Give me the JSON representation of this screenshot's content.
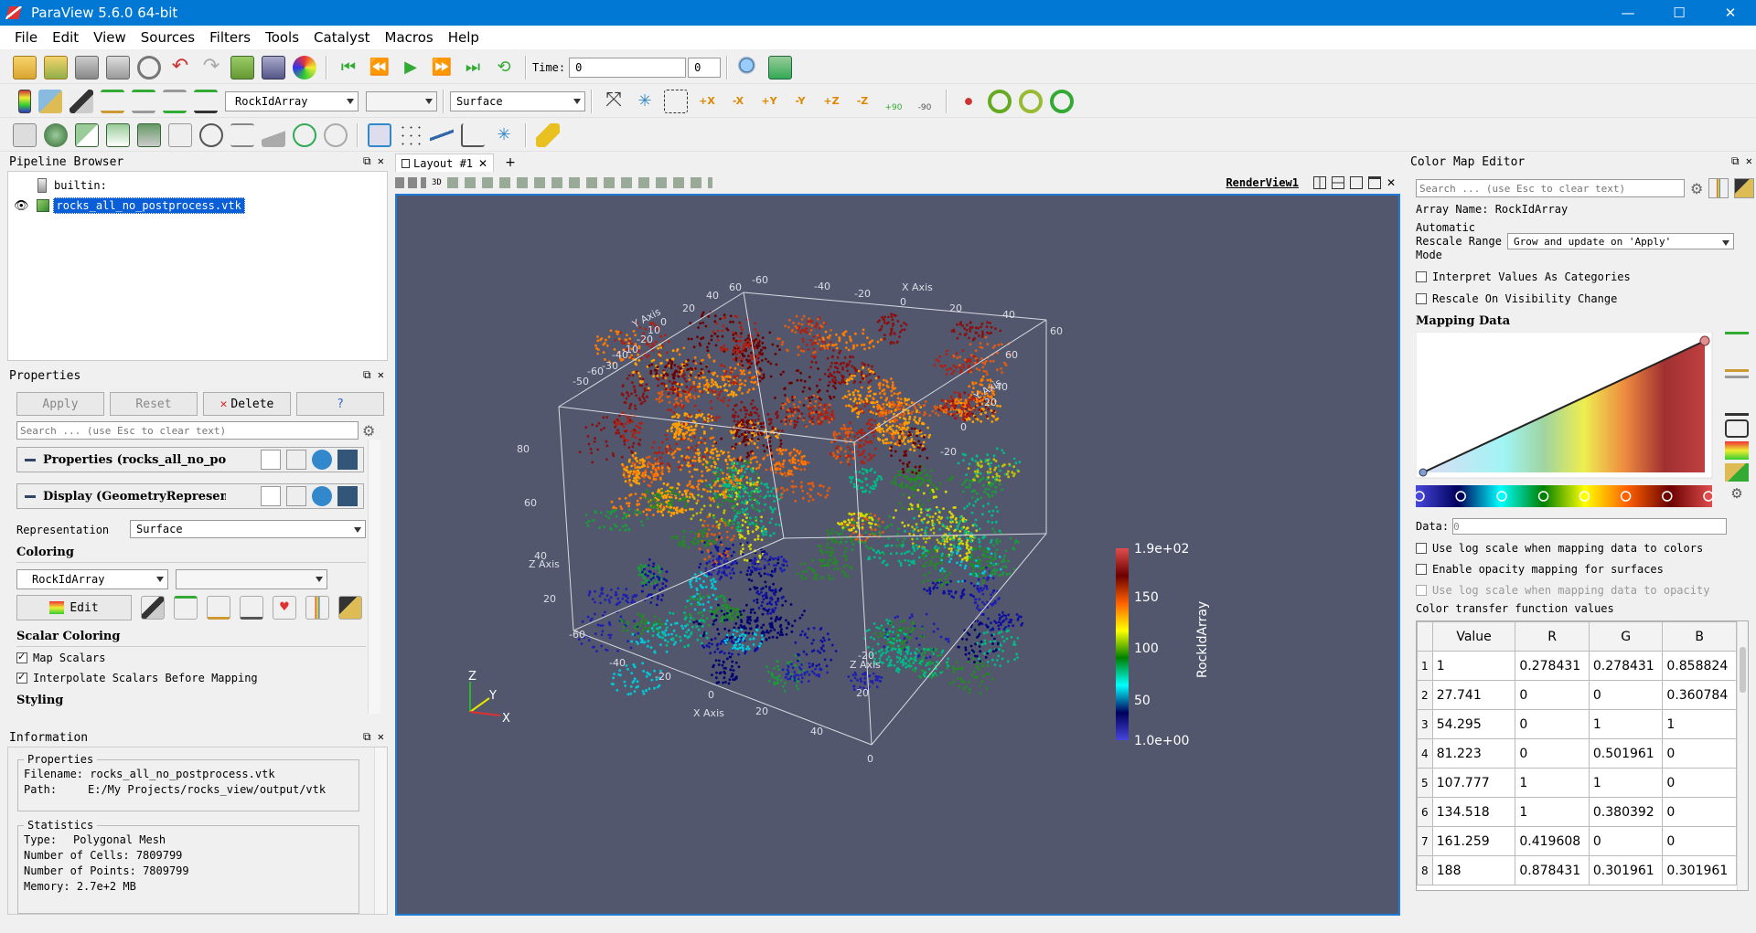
{
  "window": {
    "title": "ParaView 5.6.0 64-bit",
    "minimize": "—",
    "maximize": "☐",
    "close": "✕"
  },
  "menu": [
    "File",
    "Edit",
    "View",
    "Sources",
    "Filters",
    "Tools",
    "Catalyst",
    "Macros",
    "Help"
  ],
  "toolbar": {
    "time_label": "Time:",
    "time_value": "0",
    "time_step": "0",
    "color_array": "RockIdArray",
    "component": "",
    "representation": "Surface",
    "rot_plus90": "+90",
    "rot_minus90": "-90"
  },
  "pipeline": {
    "title": "Pipeline Browser",
    "items": [
      {
        "label": "builtin:"
      },
      {
        "label": "rocks_all_no_postprocess.vtk"
      }
    ]
  },
  "properties": {
    "title": "Properties",
    "apply": "Apply",
    "reset": "Reset",
    "delete": "Delete",
    "help": "?",
    "search_placeholder": "Search ... (use Esc to clear text)",
    "sec_properties": "Properties (rocks_all_no_postprocess.vtk)",
    "sec_display": "Display (GeometryRepresentation)",
    "representation_label": "Representation",
    "representation_value": "Surface",
    "coloring_label": "Coloring",
    "coloring_array": "RockIdArray",
    "coloring_component": "",
    "edit": "Edit",
    "scalar_coloring": "Scalar Coloring",
    "map_scalars": "Map Scalars",
    "interpolate": "Interpolate Scalars Before Mapping",
    "styling": "Styling"
  },
  "information": {
    "title": "Information",
    "group_properties": "Properties",
    "filename_label": "Filename:",
    "filename": "rocks_all_no_postprocess.vtk",
    "path_label": "Path:",
    "path": "E:/My Projects/rocks_view/output/vtk",
    "group_statistics": "Statistics",
    "type_label": "Type:",
    "type": "Polygonal Mesh",
    "cells_label": "Number of Cells:",
    "cells": "7809799",
    "points_label": "Number of Points:",
    "points": "7809799",
    "memory_label": "Memory:",
    "memory": "2.7e+2 MB"
  },
  "layout": {
    "tab": "Layout #1",
    "add": "+",
    "view_name": "RenderView1",
    "view_3d": "3D"
  },
  "render": {
    "background": "#52576e",
    "colorbar": {
      "title": "RockIdArray",
      "max": "1.9e+02",
      "min": "1.0e+00",
      "ticks": [
        "150",
        "100",
        "50"
      ]
    },
    "axes": {
      "x": "X Axis",
      "y": "Y Axis",
      "z": "Z Axis"
    },
    "orientation": {
      "x": "X",
      "y": "Y",
      "z": "Z"
    }
  },
  "colormap": {
    "title": "Color Map Editor",
    "search_placeholder": "Search ... (use Esc to clear text)",
    "array_name": "Array Name: RockIdArray",
    "auto_rescale_label1": "Automatic",
    "auto_rescale_label2": "Rescale Range",
    "auto_rescale_label3": "Mode",
    "auto_rescale_value": "Grow and update on 'Apply'",
    "interpret_categories": "Interpret Values As Categories",
    "rescale_visibility": "Rescale On Visibility Change",
    "mapping_data": "Mapping Data",
    "data_label": "Data:",
    "data_value": "0",
    "log_scale": "Use log scale when mapping data to colors",
    "opacity_mapping": "Enable opacity mapping for surfaces",
    "log_opacity": "Use log scale when mapping data to opacity",
    "transfer_values": "Color transfer function values",
    "columns": [
      "Value",
      "R",
      "G",
      "B"
    ],
    "rows": [
      [
        "1",
        "0.278431",
        "0.278431",
        "0.858824"
      ],
      [
        "27.741",
        "0",
        "0",
        "0.360784"
      ],
      [
        "54.295",
        "0",
        "1",
        "1"
      ],
      [
        "81.223",
        "0",
        "0.501961",
        "0"
      ],
      [
        "107.777",
        "1",
        "1",
        "0"
      ],
      [
        "134.518",
        "1",
        "0.380392",
        "0"
      ],
      [
        "161.259",
        "0.419608",
        "0",
        "0"
      ],
      [
        "188",
        "0.878431",
        "0.301961",
        "0.301961"
      ]
    ]
  }
}
